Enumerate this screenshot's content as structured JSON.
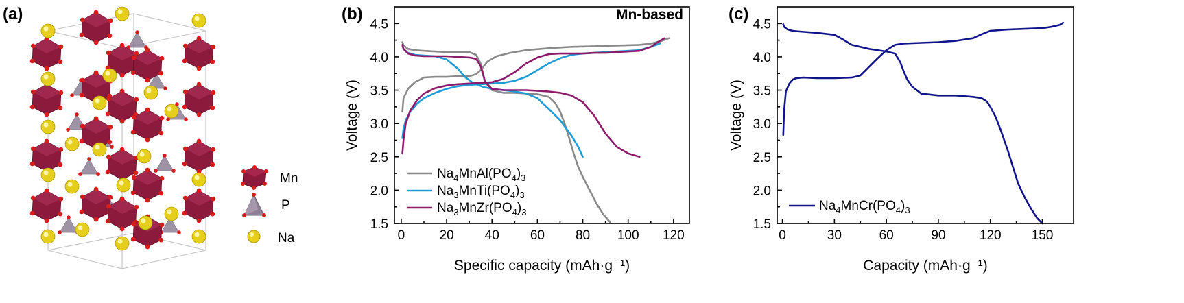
{
  "colors": {
    "mn_octahedron": "#8b1a3c",
    "p_tetrahedron": "#8e7f96",
    "na_sphere": "#e6cf1c",
    "oxygen": "#d81c1c"
  },
  "panel_a": {
    "label": "(a)",
    "legend": [
      {
        "label": "Mn",
        "icon": "mn-octahedron-icon"
      },
      {
        "label": "P",
        "icon": "p-tetrahedron-icon"
      },
      {
        "label": "Na",
        "icon": "na-sphere-icon"
      }
    ]
  },
  "chart_data": [
    {
      "type": "line",
      "panel_label": "(b)",
      "annotation": "Mn-based",
      "xlabel": "Specific capacity (mAh·g⁻¹)",
      "ylabel": "Voltage (V)",
      "xlim": [
        -3,
        127
      ],
      "ylim": [
        1.5,
        4.75
      ],
      "xticks": [
        0,
        20,
        40,
        60,
        80,
        100,
        120
      ],
      "yticks": [
        1.5,
        2.0,
        2.5,
        3.0,
        3.5,
        4.0,
        4.5
      ],
      "grid": false,
      "legend_position": "bottom-left",
      "series": [
        {
          "name": "Na4MnAl(PO4)3",
          "legend": {
            "prefix": "Na",
            "sub1": "4",
            "mid": "MnAl(PO",
            "sub2": "4",
            "suffix": ")",
            "sub3": "3"
          },
          "color": "#8a8a8a",
          "curves": [
            {
              "x": [
                0.5,
                1,
                3,
                6,
                10,
                15,
                20,
                25,
                30,
                33,
                35,
                38,
                42,
                48,
                55,
                65,
                75,
                85,
                95,
                105,
                110,
                114,
                118
              ],
              "y": [
                3.18,
                3.38,
                3.52,
                3.62,
                3.69,
                3.7,
                3.7,
                3.71,
                3.71,
                3.74,
                3.8,
                3.93,
                4.01,
                4.06,
                4.1,
                4.13,
                4.15,
                4.16,
                4.17,
                4.18,
                4.2,
                4.23,
                4.28
              ]
            },
            {
              "x": [
                0.5,
                1,
                3,
                6,
                10,
                15,
                20,
                25,
                30,
                33,
                35,
                37,
                40,
                45,
                50,
                55,
                60,
                65,
                68,
                70,
                72,
                74,
                76,
                78,
                80,
                83,
                86,
                89,
                92
              ],
              "y": [
                4.22,
                4.17,
                4.12,
                4.1,
                4.09,
                4.08,
                4.07,
                4.07,
                4.07,
                4.03,
                3.9,
                3.62,
                3.5,
                3.46,
                3.46,
                3.45,
                3.44,
                3.4,
                3.3,
                3.18,
                3.0,
                2.78,
                2.55,
                2.35,
                2.2,
                2.0,
                1.8,
                1.64,
                1.52
              ]
            }
          ]
        },
        {
          "name": "Na3MnTi(PO4)3",
          "legend": {
            "prefix": "Na",
            "sub1": "3",
            "mid": "MnTi(PO",
            "sub2": "4",
            "suffix": ")",
            "sub3": "3"
          },
          "color": "#1f9bd6",
          "curves": [
            {
              "x": [
                0.5,
                1,
                2,
                4,
                7,
                10,
                15,
                20,
                25,
                30,
                35,
                40,
                45,
                50,
                55,
                60,
                65,
                70,
                75,
                80,
                85,
                90,
                95,
                100,
                105,
                110,
                114
              ],
              "y": [
                2.78,
                2.92,
                3.05,
                3.18,
                3.3,
                3.38,
                3.46,
                3.52,
                3.56,
                3.58,
                3.59,
                3.6,
                3.61,
                3.64,
                3.7,
                3.8,
                3.9,
                3.98,
                4.03,
                4.05,
                4.06,
                4.07,
                4.08,
                4.09,
                4.1,
                4.15,
                4.2
              ]
            },
            {
              "x": [
                0.5,
                1,
                3,
                6,
                10,
                15,
                20,
                25,
                28,
                32,
                36,
                40,
                45,
                50,
                55,
                60,
                65,
                70,
                75,
                78,
                80
              ],
              "y": [
                4.17,
                4.12,
                4.06,
                4.03,
                4.02,
                4.01,
                3.96,
                3.82,
                3.7,
                3.6,
                3.55,
                3.52,
                3.5,
                3.48,
                3.45,
                3.38,
                3.22,
                3.05,
                2.82,
                2.65,
                2.5
              ]
            }
          ]
        },
        {
          "name": "Na3MnZr(PO4)3",
          "legend": {
            "prefix": "Na",
            "sub1": "3",
            "mid": "MnZr(PO",
            "sub2": "4",
            "suffix": ")",
            "sub3": "3"
          },
          "color": "#8c1c6b",
          "curves": [
            {
              "x": [
                0.5,
                1,
                2,
                4,
                7,
                10,
                15,
                20,
                25,
                30,
                35,
                40,
                45,
                50,
                55,
                60,
                65,
                70,
                75,
                80,
                85,
                90,
                95,
                100,
                105,
                110,
                113,
                116
              ],
              "y": [
                2.55,
                2.75,
                3.0,
                3.2,
                3.35,
                3.45,
                3.53,
                3.57,
                3.59,
                3.6,
                3.61,
                3.62,
                3.67,
                3.77,
                3.9,
                3.99,
                4.04,
                4.05,
                4.05,
                4.05,
                4.06,
                4.06,
                4.07,
                4.08,
                4.09,
                4.15,
                4.22,
                4.28
              ]
            },
            {
              "x": [
                0.5,
                1,
                3,
                6,
                10,
                15,
                20,
                25,
                30,
                33,
                35,
                37,
                40,
                45,
                50,
                55,
                60,
                65,
                70,
                75,
                80,
                85,
                90,
                95,
                100,
                105
              ],
              "y": [
                4.18,
                4.12,
                4.05,
                4.02,
                4.01,
                4.01,
                4.01,
                4.0,
                3.99,
                3.97,
                3.86,
                3.62,
                3.52,
                3.5,
                3.5,
                3.5,
                3.49,
                3.48,
                3.46,
                3.42,
                3.32,
                3.12,
                2.85,
                2.65,
                2.55,
                2.5
              ]
            }
          ]
        }
      ]
    },
    {
      "type": "line",
      "panel_label": "(c)",
      "xlabel": "Capacity (mAh·g⁻¹)",
      "ylabel": "Voltage (V)",
      "xlim": [
        -3,
        168
      ],
      "ylim": [
        1.5,
        4.75
      ],
      "xticks": [
        0,
        30,
        60,
        90,
        120,
        150
      ],
      "yticks": [
        1.5,
        2.0,
        2.5,
        3.0,
        3.5,
        4.0,
        4.5
      ],
      "grid": false,
      "legend_position": "bottom-left",
      "series": [
        {
          "name": "Na4MnCr(PO4)3",
          "legend": {
            "prefix": "Na",
            "sub1": "4",
            "mid": "MnCr(PO",
            "sub2": "4",
            "suffix": ")",
            "sub3": "3"
          },
          "color": "#12158a",
          "curves": [
            {
              "x": [
                0.5,
                1,
                2,
                4,
                6,
                8,
                12,
                20,
                30,
                40,
                45,
                50,
                55,
                60,
                65,
                70,
                80,
                90,
                100,
                110,
                115,
                120,
                130,
                140,
                150,
                155,
                160,
                162
              ],
              "y": [
                2.83,
                3.2,
                3.48,
                3.6,
                3.66,
                3.68,
                3.69,
                3.68,
                3.68,
                3.69,
                3.72,
                3.85,
                3.98,
                4.1,
                4.18,
                4.2,
                4.21,
                4.22,
                4.24,
                4.28,
                4.34,
                4.39,
                4.41,
                4.42,
                4.43,
                4.45,
                4.48,
                4.51
              ]
            },
            {
              "x": [
                0.5,
                1,
                3,
                6,
                10,
                20,
                30,
                35,
                40,
                50,
                60,
                65,
                68,
                70,
                72,
                75,
                80,
                90,
                100,
                110,
                115,
                118,
                120,
                123,
                126,
                130,
                133,
                136,
                140,
                144,
                147,
                150
              ],
              "y": [
                4.49,
                4.45,
                4.41,
                4.39,
                4.38,
                4.36,
                4.33,
                4.26,
                4.18,
                4.12,
                4.08,
                4.05,
                3.92,
                3.78,
                3.66,
                3.55,
                3.45,
                3.42,
                3.42,
                3.4,
                3.38,
                3.33,
                3.25,
                3.1,
                2.9,
                2.6,
                2.35,
                2.1,
                1.88,
                1.7,
                1.58,
                1.5
              ]
            }
          ]
        }
      ]
    }
  ]
}
